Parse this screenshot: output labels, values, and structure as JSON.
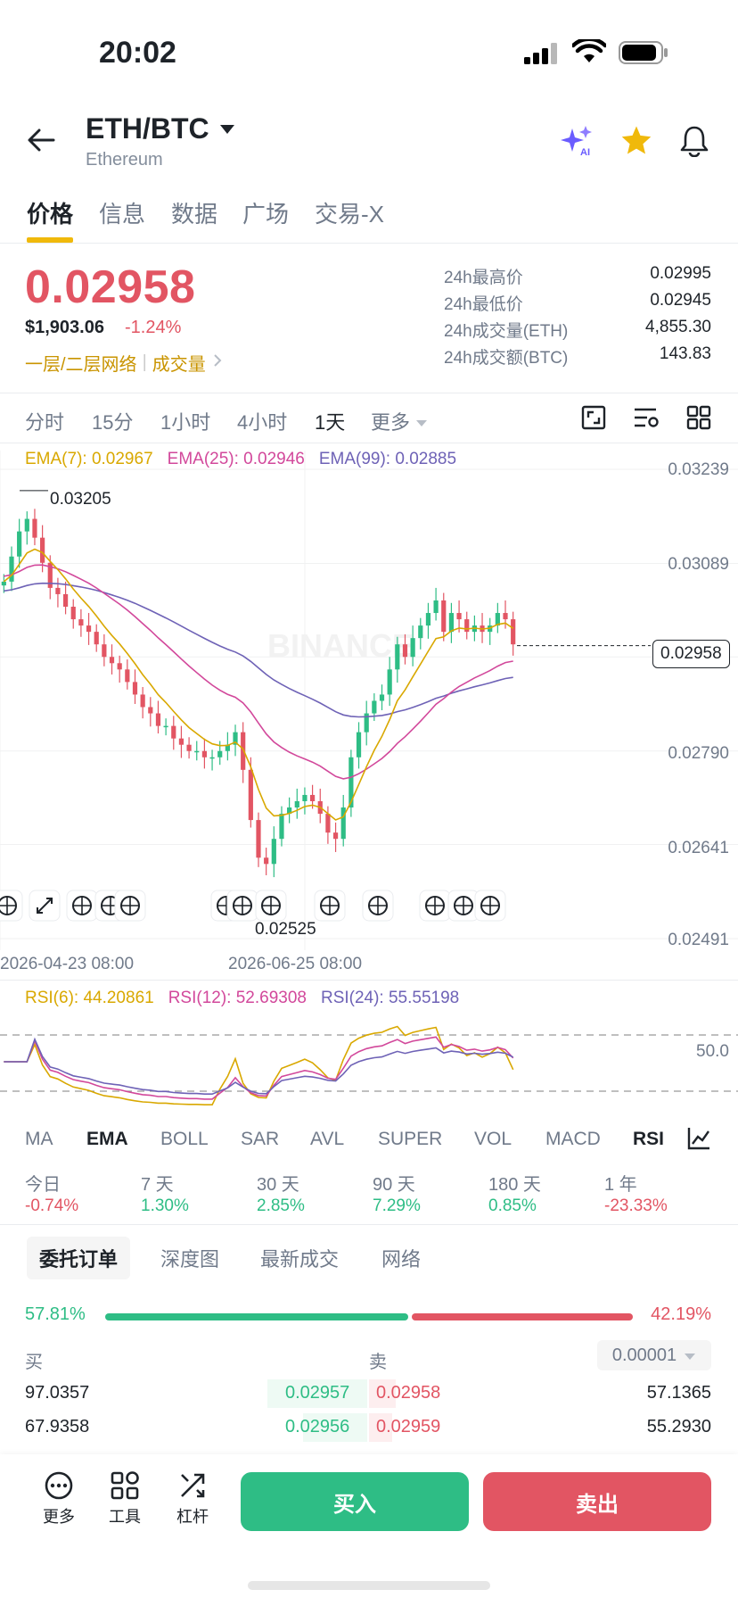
{
  "status": {
    "time": "20:02"
  },
  "header": {
    "pair": "ETH/BTC",
    "subtitle": "Ethereum",
    "icons": [
      "back-arrow-icon",
      "dropdown-caret-icon",
      "ai-sparkle-icon",
      "star-icon",
      "bell-icon"
    ],
    "accent": "#f0b90b"
  },
  "tabs": [
    "价格",
    "信息",
    "数据",
    "广场",
    "交易-X"
  ],
  "price": {
    "last": "0.02958",
    "usd": "$1,903.06",
    "change": "-1.24%",
    "tag1": "一层/二层网络",
    "tag2": "成交量",
    "down_color": "#e25563",
    "up_color": "#2ebd85"
  },
  "stats": [
    {
      "label": "24h最高价",
      "value": "0.02995"
    },
    {
      "label": "24h最低价",
      "value": "0.02945"
    },
    {
      "label": "24h成交量(ETH)",
      "value": "4,855.30"
    },
    {
      "label": "24h成交额(BTC)",
      "value": "143.83"
    }
  ],
  "timeframes": [
    "分时",
    "15分",
    "1小时",
    "4小时",
    "1天",
    "更多"
  ],
  "ema": {
    "ema7": "EMA(7): 0.02967",
    "ema25": "EMA(25): 0.02946",
    "ema99": "EMA(99): 0.02885"
  },
  "chart_data": {
    "type": "candlestick",
    "y_ticks": [
      "0.03239",
      "0.03089",
      "0.02790",
      "0.02641",
      "0.02491"
    ],
    "current_price_label": "0.02958",
    "high_label": "0.03205",
    "low_label": "0.02525",
    "x_ticks": [
      "2026-04-23 08:00",
      "2026-06-25 08:00"
    ],
    "watermark": "BINANCE",
    "closes": [
      0.0306,
      0.031,
      0.0314,
      0.0316,
      0.0313,
      0.0309,
      0.0305,
      0.0304,
      0.0302,
      0.03,
      0.0299,
      0.0298,
      0.0296,
      0.0294,
      0.0293,
      0.0292,
      0.029,
      0.0288,
      0.0286,
      0.0285,
      0.0283,
      0.0283,
      0.0281,
      0.028,
      0.0279,
      0.0279,
      0.0278,
      0.0278,
      0.0279,
      0.028,
      0.0282,
      0.0276,
      0.0268,
      0.0262,
      0.0261,
      0.0265,
      0.0269,
      0.027,
      0.0271,
      0.0272,
      0.0271,
      0.0269,
      0.0266,
      0.0265,
      0.027,
      0.0278,
      0.0282,
      0.0285,
      0.0287,
      0.0288,
      0.0292,
      0.0296,
      0.0294,
      0.0297,
      0.0299,
      0.0301,
      0.0303,
      0.0298,
      0.0301,
      0.03,
      0.0298,
      0.0299,
      0.0298,
      0.0299,
      0.0301,
      0.03,
      0.0296
    ],
    "ema7_last": 0.02967,
    "ema25_last": 0.02946,
    "ema99_last": 0.02885
  },
  "rsi": {
    "rsi6": "RSI(6): 44.20861",
    "rsi12": "RSI(12): 52.69308",
    "rsi24": "RSI(24): 55.55198",
    "level": "50.0"
  },
  "indicators": [
    "MA",
    "EMA",
    "BOLL",
    "SAR",
    "AVL",
    "SUPER",
    "VOL",
    "MACD",
    "RSI"
  ],
  "performance": [
    {
      "label": "今日",
      "value": "-0.74%",
      "dir": "down"
    },
    {
      "label": "7 天",
      "value": "1.30%",
      "dir": "up"
    },
    {
      "label": "30 天",
      "value": "2.85%",
      "dir": "up"
    },
    {
      "label": "90 天",
      "value": "7.29%",
      "dir": "up"
    },
    {
      "label": "180 天",
      "value": "0.85%",
      "dir": "up"
    },
    {
      "label": "1 年",
      "value": "-23.33%",
      "dir": "down"
    }
  ],
  "orderbook": {
    "tabs": [
      "委托订单",
      "深度图",
      "最新成交",
      "网络"
    ],
    "buy_pct": "57.81%",
    "sell_pct": "42.19%",
    "buy_ratio": 0.5781,
    "buy_label": "买",
    "sell_label": "卖",
    "precision": "0.00001",
    "rows": [
      {
        "bid_qty": "97.0357",
        "bid": "0.02957",
        "ask": "0.02958",
        "ask_qty": "57.1365"
      },
      {
        "bid_qty": "67.9358",
        "bid": "0.02956",
        "ask": "0.02959",
        "ask_qty": "55.2930"
      }
    ]
  },
  "bottom": {
    "more": "更多",
    "tools": "工具",
    "leverage": "杠杆",
    "buy": "买入",
    "sell": "卖出"
  }
}
